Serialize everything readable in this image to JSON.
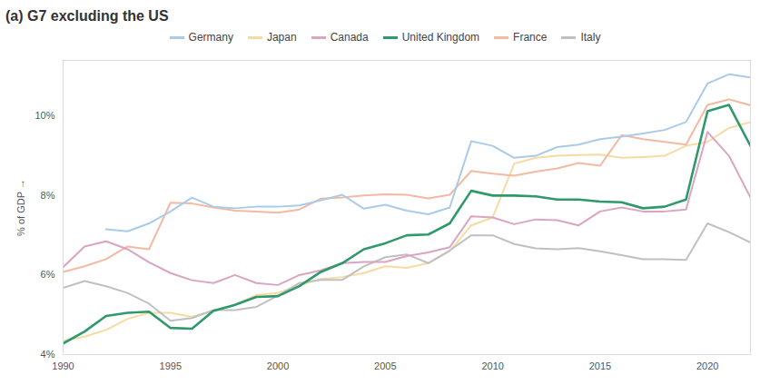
{
  "chart_data": {
    "type": "line",
    "title": "(a) G7 excluding the US",
    "ylabel": "% of GDP",
    "legend": "top",
    "grid": false,
    "x": [
      1990,
      1991,
      1992,
      1993,
      1994,
      1995,
      1996,
      1997,
      1998,
      1999,
      2000,
      2001,
      2002,
      2003,
      2004,
      2005,
      2006,
      2007,
      2008,
      2009,
      2010,
      2011,
      2012,
      2013,
      2014,
      2015,
      2016,
      2017,
      2018,
      2019,
      2020,
      2021,
      2022
    ],
    "xlim": [
      1990,
      2022
    ],
    "xticks": [
      1990,
      1995,
      2000,
      2005,
      2010,
      2015,
      2020
    ],
    "ylim": [
      4,
      11.4
    ],
    "yticks": [
      {
        "value": 4,
        "label": "4%"
      },
      {
        "value": 6,
        "label": "6%"
      },
      {
        "value": 8,
        "label": "8%"
      },
      {
        "value": 10,
        "label": "10%"
      }
    ],
    "series": [
      {
        "name": "Germany",
        "color": "#a9cbe8",
        "values": [
          null,
          null,
          7.15,
          7.1,
          7.3,
          7.6,
          7.95,
          7.72,
          7.68,
          7.72,
          7.72,
          7.75,
          7.88,
          8.02,
          7.67,
          7.77,
          7.62,
          7.53,
          7.7,
          9.37,
          9.25,
          8.95,
          9.0,
          9.22,
          9.28,
          9.42,
          9.48,
          9.56,
          9.65,
          9.85,
          10.82,
          11.05,
          10.97
        ]
      },
      {
        "name": "Japan",
        "color": "#f6dba3",
        "values": [
          4.35,
          4.45,
          4.62,
          4.9,
          5.05,
          5.05,
          4.95,
          5.1,
          5.25,
          5.5,
          5.55,
          5.75,
          5.9,
          5.95,
          6.05,
          6.22,
          6.18,
          6.3,
          6.6,
          7.25,
          7.45,
          8.8,
          8.95,
          9.0,
          9.02,
          9.03,
          8.95,
          8.97,
          9.0,
          9.25,
          9.35,
          9.7,
          9.85
        ]
      },
      {
        "name": "Canada",
        "color": "#dba4c0",
        "values": [
          6.2,
          6.72,
          6.85,
          6.65,
          6.32,
          6.05,
          5.87,
          5.8,
          6.0,
          5.8,
          5.75,
          6.0,
          6.12,
          6.3,
          6.33,
          6.33,
          6.48,
          6.57,
          6.7,
          7.48,
          7.45,
          7.28,
          7.4,
          7.38,
          7.25,
          7.6,
          7.7,
          7.6,
          7.6,
          7.65,
          9.6,
          9.0,
          7.95
        ]
      },
      {
        "name": "United Kingdom",
        "color": "#2e9a6b",
        "values": [
          4.28,
          4.58,
          4.97,
          5.05,
          5.08,
          4.67,
          4.65,
          5.1,
          5.25,
          5.45,
          5.47,
          5.72,
          6.08,
          6.3,
          6.65,
          6.8,
          7.0,
          7.02,
          7.3,
          8.12,
          8.0,
          8.0,
          7.98,
          7.9,
          7.9,
          7.85,
          7.83,
          7.68,
          7.72,
          7.9,
          10.12,
          10.28,
          9.25
        ]
      },
      {
        "name": "France",
        "color": "#f4b9a2",
        "values": [
          6.08,
          6.22,
          6.4,
          6.72,
          6.65,
          7.82,
          7.8,
          7.7,
          7.62,
          7.6,
          7.57,
          7.65,
          7.92,
          7.95,
          8.0,
          8.03,
          8.02,
          7.93,
          8.02,
          8.62,
          8.55,
          8.5,
          8.6,
          8.68,
          8.82,
          8.75,
          9.52,
          9.42,
          9.35,
          9.28,
          10.28,
          10.42,
          10.27
        ]
      },
      {
        "name": "Italy",
        "color": "#c0c0c0",
        "values": [
          5.68,
          5.85,
          5.72,
          5.55,
          5.28,
          4.85,
          4.92,
          5.12,
          5.12,
          5.2,
          5.48,
          5.8,
          5.88,
          5.88,
          6.22,
          6.45,
          6.52,
          6.3,
          6.62,
          7.0,
          7.0,
          6.78,
          6.67,
          6.65,
          6.68,
          6.6,
          6.5,
          6.4,
          6.4,
          6.38,
          7.3,
          7.08,
          6.82
        ]
      }
    ]
  }
}
